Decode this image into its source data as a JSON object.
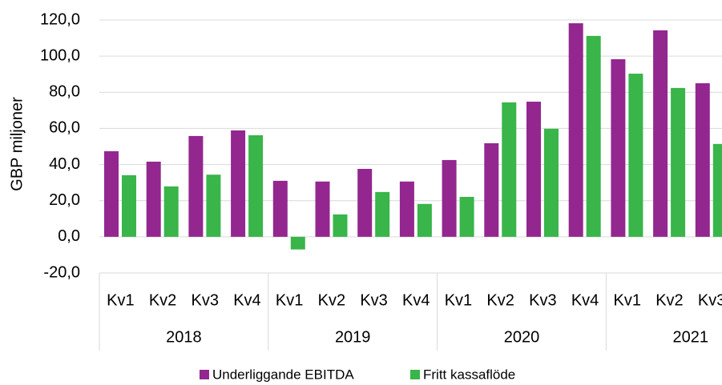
{
  "chart_data": {
    "type": "bar",
    "y_label": "GBP miljoner",
    "years": [
      "2018",
      "2019",
      "2020",
      "2021"
    ],
    "categories": [
      "Kv1",
      "Kv2",
      "Kv3",
      "Kv4",
      "Kv1",
      "Kv2",
      "Kv3",
      "Kv4",
      "Kv1",
      "Kv2",
      "Kv3",
      "Kv4",
      "Kv1",
      "Kv2",
      "Kv3"
    ],
    "series": [
      {
        "name": "Underliggande EBITDA",
        "color": "#93278f",
        "values": [
          47.4,
          41.6,
          55.8,
          58.9,
          31.0,
          30.6,
          37.6,
          30.6,
          42.5,
          51.8,
          74.8,
          118.2,
          98.3,
          114.3,
          85.0
        ]
      },
      {
        "name": "Fritt kassaflöde",
        "color": "#39b54a",
        "values": [
          34.1,
          27.9,
          34.4,
          56.2,
          -7.0,
          12.4,
          24.8,
          18.2,
          22.1,
          74.4,
          59.8,
          111.2,
          90.3,
          82.4,
          51.4
        ]
      }
    ],
    "ylim": [
      -20,
      120
    ],
    "yticks": [
      {
        "value": -20,
        "label": "-20,0"
      },
      {
        "value": 0,
        "label": "0,0"
      },
      {
        "value": 20,
        "label": "20,0"
      },
      {
        "value": 40,
        "label": "40,0"
      },
      {
        "value": 60,
        "label": "60,0"
      },
      {
        "value": 80,
        "label": "80,0"
      },
      {
        "value": 100,
        "label": "100,0"
      },
      {
        "value": 120,
        "label": "120,0"
      }
    ],
    "grid": true
  }
}
